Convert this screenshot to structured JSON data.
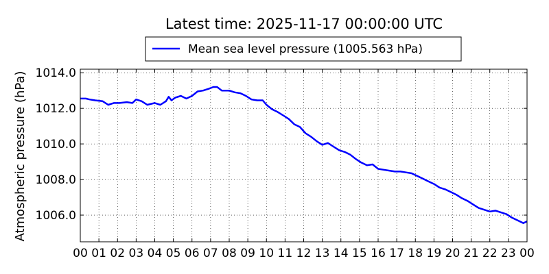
{
  "chart_data": {
    "type": "line",
    "title": "Latest time: 2025-11-17 00:00:00 UTC",
    "xlabel": "",
    "ylabel": "Atmospheric pressure (hPa)",
    "xlim": [
      0,
      24
    ],
    "ylim": [
      1004.5,
      1014.2
    ],
    "x_tick_labels": [
      "00",
      "01",
      "02",
      "03",
      "04",
      "05",
      "06",
      "07",
      "08",
      "09",
      "10",
      "11",
      "12",
      "13",
      "14",
      "15",
      "16",
      "17",
      "18",
      "19",
      "20",
      "21",
      "22",
      "23",
      "00"
    ],
    "y_ticks": [
      1006,
      1008,
      1010,
      1012,
      1014
    ],
    "y_tick_labels": [
      "1006.0",
      "1008.0",
      "1010.0",
      "1012.0",
      "1014.0"
    ],
    "grid": true,
    "legend_position": "top",
    "series": [
      {
        "name": "Mean sea level pressure (1005.563 hPa)",
        "color": "#0000ff",
        "x": [
          0,
          0.3,
          0.5,
          0.8,
          1.2,
          1.5,
          1.8,
          2.1,
          2.5,
          2.8,
          3.0,
          3.3,
          3.6,
          4.0,
          4.3,
          4.6,
          4.75,
          4.9,
          5.1,
          5.4,
          5.7,
          6.0,
          6.3,
          6.6,
          6.9,
          7.15,
          7.35,
          7.6,
          8.0,
          8.3,
          8.6,
          8.9,
          9.2,
          9.5,
          9.8,
          10.0,
          10.3,
          10.6,
          10.9,
          11.2,
          11.5,
          11.8,
          12.1,
          12.4,
          12.7,
          13.0,
          13.3,
          13.6,
          13.9,
          14.2,
          14.5,
          14.8,
          15.1,
          15.4,
          15.7,
          16.0,
          16.3,
          16.6,
          16.9,
          17.2,
          17.5,
          17.8,
          18.1,
          18.4,
          18.7,
          19.0,
          19.3,
          19.6,
          19.9,
          20.2,
          20.5,
          20.8,
          21.1,
          21.4,
          21.7,
          22.0,
          22.3,
          22.6,
          22.9,
          23.2,
          23.5,
          23.8,
          24.0
        ],
        "values": [
          1012.55,
          1012.55,
          1012.5,
          1012.45,
          1012.4,
          1012.2,
          1012.3,
          1012.3,
          1012.35,
          1012.3,
          1012.5,
          1012.4,
          1012.2,
          1012.3,
          1012.2,
          1012.4,
          1012.65,
          1012.45,
          1012.6,
          1012.7,
          1012.55,
          1012.7,
          1012.95,
          1013.0,
          1013.1,
          1013.2,
          1013.2,
          1013.0,
          1013.0,
          1012.9,
          1012.85,
          1012.7,
          1012.5,
          1012.45,
          1012.45,
          1012.2,
          1011.95,
          1011.8,
          1011.6,
          1011.4,
          1011.1,
          1010.95,
          1010.6,
          1010.4,
          1010.15,
          1009.95,
          1010.05,
          1009.85,
          1009.65,
          1009.55,
          1009.4,
          1009.15,
          1008.95,
          1008.8,
          1008.85,
          1008.6,
          1008.55,
          1008.5,
          1008.45,
          1008.45,
          1008.4,
          1008.35,
          1008.2,
          1008.05,
          1007.9,
          1007.75,
          1007.55,
          1007.45,
          1007.3,
          1007.15,
          1006.95,
          1006.8,
          1006.6,
          1006.4,
          1006.3,
          1006.2,
          1006.25,
          1006.15,
          1006.05,
          1005.85,
          1005.7,
          1005.55,
          1005.65
        ]
      }
    ]
  }
}
